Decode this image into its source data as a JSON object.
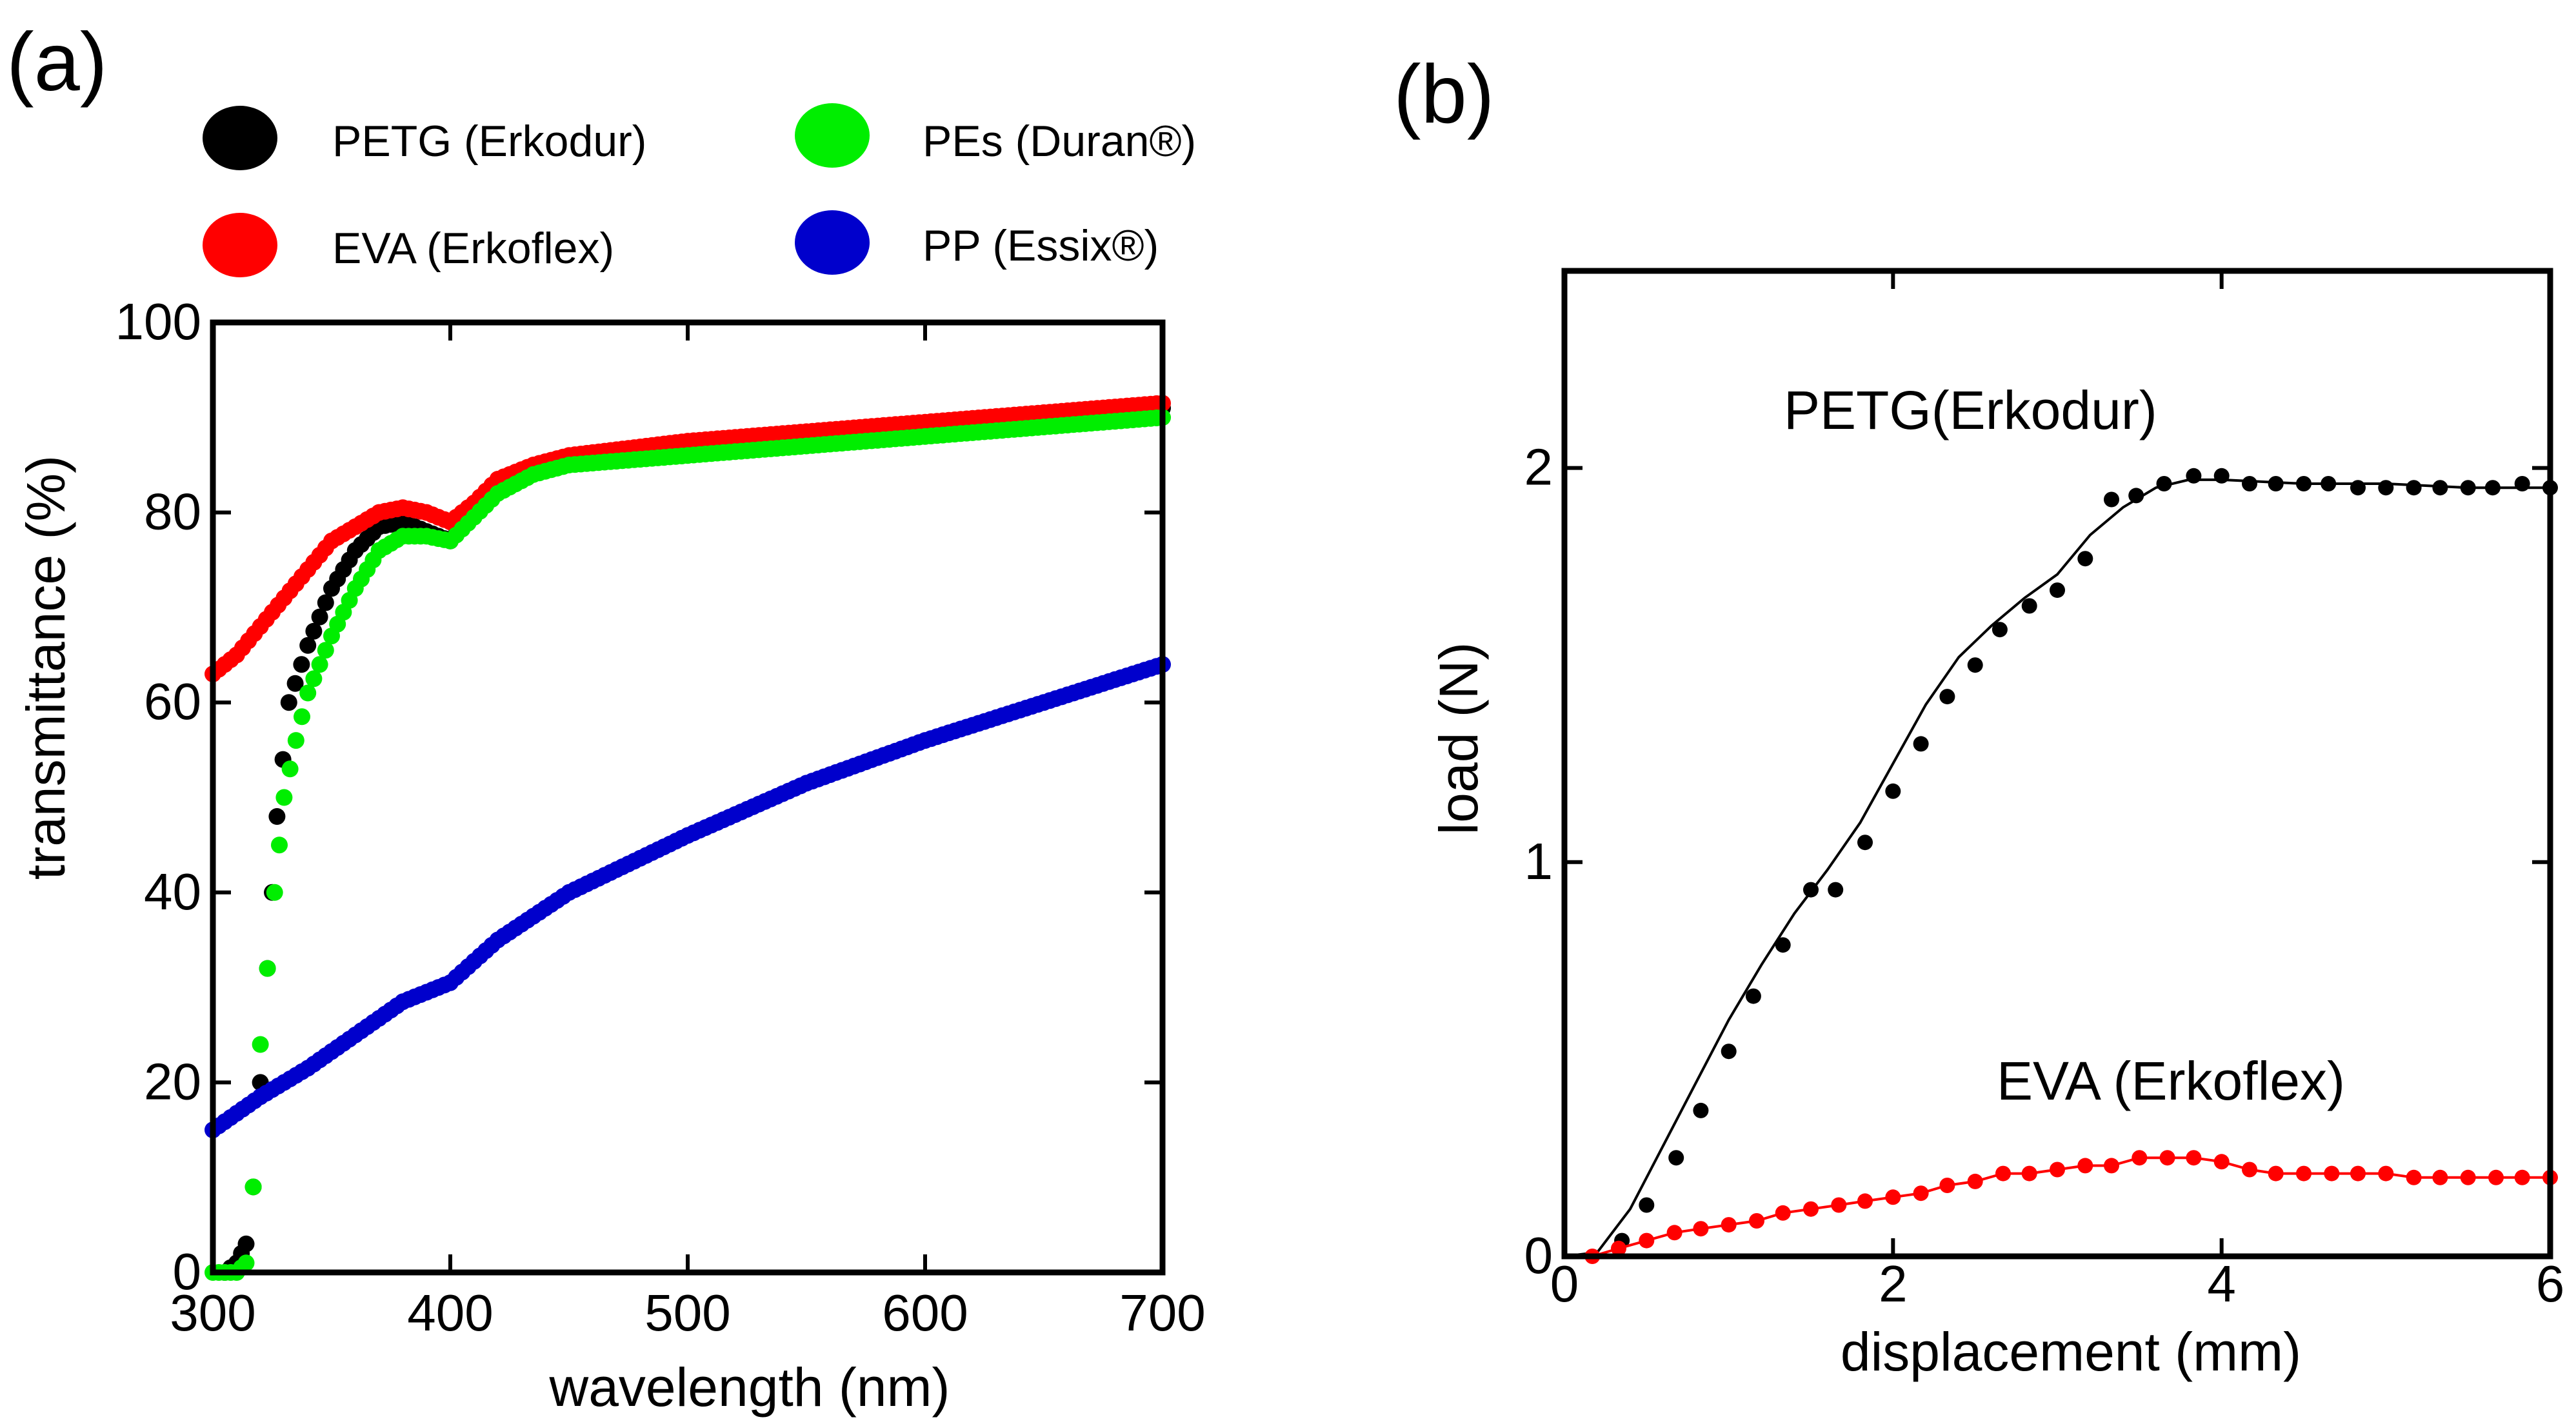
{
  "panel_a": {
    "label": "(a)",
    "legend": [
      {
        "name": "PETG (Erkodur)",
        "color": "#000000"
      },
      {
        "name": "EVA (Erkoflex)",
        "color": "#ff0000"
      },
      {
        "name": "PEs (Duran®)",
        "color": "#00ee00"
      },
      {
        "name": "PP (Essix®)",
        "color": "#0000cc"
      }
    ]
  },
  "panel_b": {
    "label": "(b)",
    "annotations": [
      {
        "text": "PETG(Erkodur)",
        "color": "#000000"
      },
      {
        "text": "EVA (Erkoflex)",
        "color": "#ff0000"
      }
    ]
  },
  "chart_data": [
    {
      "type": "scatter",
      "title": "",
      "xlabel": "wavelength (nm)",
      "ylabel": "transmittance (%)",
      "xlim": [
        300,
        700
      ],
      "ylim": [
        0,
        100
      ],
      "xticks": [
        "300",
        "400",
        "500",
        "600",
        "700"
      ],
      "yticks": [
        "0",
        "20",
        "40",
        "60",
        "80",
        "100"
      ],
      "series": [
        {
          "name": "PETG (Erkodur)",
          "color": "#000000",
          "x": [
            305,
            310,
            314,
            317,
            320,
            323,
            327,
            332,
            340,
            350,
            360,
            370,
            380,
            390,
            400,
            410,
            420,
            435,
            450,
            500,
            550,
            600,
            650,
            700
          ],
          "y": [
            0,
            1,
            3,
            9,
            20,
            32,
            48,
            60,
            66,
            72,
            76,
            78.5,
            79,
            78,
            77,
            80,
            83,
            84.5,
            85.5,
            86.5,
            87.5,
            88.5,
            90,
            91
          ]
        },
        {
          "name": "EVA (Erkoflex)",
          "color": "#ff0000",
          "x": [
            300,
            310,
            320,
            330,
            340,
            350,
            360,
            370,
            380,
            390,
            400,
            410,
            420,
            435,
            450,
            500,
            550,
            600,
            650,
            700
          ],
          "y": [
            63,
            65,
            68,
            71,
            74,
            77,
            78.5,
            80,
            80.5,
            80,
            79,
            81,
            83.5,
            85,
            86,
            87.5,
            88.5,
            89.5,
            90.5,
            91.5
          ]
        },
        {
          "name": "PEs (Duran®)",
          "color": "#00ee00",
          "x": [
            300,
            305,
            310,
            314,
            317,
            320,
            323,
            326,
            330,
            335,
            340,
            350,
            360,
            370,
            380,
            390,
            400,
            410,
            420,
            435,
            450,
            500,
            550,
            600,
            650,
            700
          ],
          "y": [
            0,
            0,
            0,
            1,
            9,
            24,
            32,
            40,
            50,
            56,
            61,
            67,
            72,
            76,
            77.5,
            77.5,
            77,
            79.5,
            82,
            84,
            85,
            86,
            87,
            88,
            89,
            90
          ]
        },
        {
          "name": "PP (Essix®)",
          "color": "#0000cc",
          "x": [
            300,
            320,
            340,
            360,
            380,
            400,
            420,
            450,
            500,
            550,
            600,
            650,
            700
          ],
          "y": [
            15,
            18.5,
            21.5,
            25,
            28.5,
            30.5,
            35,
            40,
            46,
            51.5,
            56,
            60,
            64
          ]
        }
      ]
    },
    {
      "type": "scatter",
      "title": "",
      "xlabel": "displacement (mm)",
      "ylabel": "load (N)",
      "xlim": [
        0,
        6
      ],
      "ylim": [
        0,
        2.5
      ],
      "xticks": [
        "0",
        "2",
        "4",
        "6"
      ],
      "yticks": [
        "0",
        "1",
        "2"
      ],
      "series": [
        {
          "name": "PETG(Erkodur)",
          "color": "#000000",
          "fit_line": true,
          "x": [
            0.35,
            0.5,
            0.68,
            0.83,
            1.0,
            1.15,
            1.33,
            1.5,
            1.65,
            1.83,
            2.0,
            2.17,
            2.33,
            2.5,
            2.65,
            2.83,
            3.0,
            3.17,
            3.33,
            3.48,
            3.65,
            3.83,
            4.0,
            4.17,
            4.33,
            4.5,
            4.65,
            4.83,
            5.0,
            5.17,
            5.33,
            5.5,
            5.65,
            5.83,
            6.0
          ],
          "y": [
            0.04,
            0.13,
            0.25,
            0.37,
            0.52,
            0.66,
            0.79,
            0.93,
            0.93,
            1.05,
            1.18,
            1.3,
            1.42,
            1.5,
            1.59,
            1.65,
            1.69,
            1.77,
            1.92,
            1.93,
            1.96,
            1.98,
            1.98,
            1.96,
            1.96,
            1.96,
            1.96,
            1.95,
            1.95,
            1.95,
            1.95,
            1.95,
            1.95,
            1.96,
            1.95
          ],
          "fit_x": [
            0,
            0.2,
            0.4,
            0.6,
            0.8,
            1.0,
            1.2,
            1.4,
            1.6,
            1.8,
            2.0,
            2.2,
            2.4,
            2.6,
            2.8,
            3.0,
            3.2,
            3.4,
            3.6,
            3.8,
            4.0,
            4.5,
            5.0,
            5.5,
            6.0
          ],
          "fit_y": [
            0,
            0.01,
            0.12,
            0.28,
            0.44,
            0.6,
            0.74,
            0.87,
            0.98,
            1.1,
            1.25,
            1.4,
            1.52,
            1.6,
            1.67,
            1.73,
            1.83,
            1.9,
            1.95,
            1.97,
            1.97,
            1.96,
            1.96,
            1.95,
            1.95
          ]
        },
        {
          "name": "EVA (Erkoflex)",
          "color": "#ff0000",
          "fit_line": true,
          "x": [
            0.17,
            0.33,
            0.5,
            0.67,
            0.83,
            1.0,
            1.17,
            1.33,
            1.5,
            1.67,
            1.83,
            2.0,
            2.17,
            2.33,
            2.5,
            2.67,
            2.83,
            3.0,
            3.17,
            3.33,
            3.5,
            3.67,
            3.83,
            4.0,
            4.17,
            4.33,
            4.5,
            4.67,
            4.83,
            5.0,
            5.17,
            5.33,
            5.5,
            5.67,
            5.83,
            6.0
          ],
          "y": [
            0.0,
            0.02,
            0.04,
            0.06,
            0.07,
            0.08,
            0.09,
            0.11,
            0.12,
            0.13,
            0.14,
            0.15,
            0.16,
            0.18,
            0.19,
            0.21,
            0.21,
            0.22,
            0.23,
            0.23,
            0.25,
            0.25,
            0.25,
            0.24,
            0.22,
            0.21,
            0.21,
            0.21,
            0.21,
            0.21,
            0.2,
            0.2,
            0.2,
            0.2,
            0.2,
            0.2
          ]
        }
      ]
    }
  ]
}
